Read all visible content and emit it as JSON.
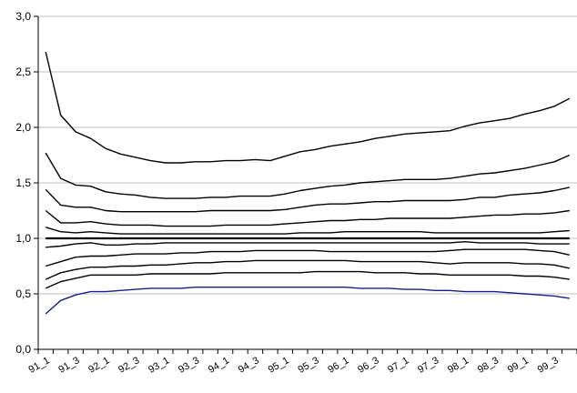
{
  "chart_data": {
    "type": "line",
    "title": "",
    "xlabel": "",
    "ylabel": "",
    "ylim": [
      0,
      3
    ],
    "grid": {
      "horizontal": true,
      "vertical": false
    },
    "legend": "none",
    "y_ticks": [
      "0,0",
      "0,5",
      "1,0",
      "1,5",
      "2,0",
      "2,5",
      "3,0"
    ],
    "x": [
      "91_1",
      "91_2",
      "91_3",
      "91_4",
      "92_1",
      "92_2",
      "92_3",
      "92_4",
      "93_1",
      "93_2",
      "93_3",
      "93_4",
      "94_1",
      "94_2",
      "94_3",
      "94_4",
      "95_1",
      "95_2",
      "95_3",
      "95_4",
      "96_1",
      "96_2",
      "96_3",
      "96_4",
      "97_1",
      "97_2",
      "97_3",
      "97_4",
      "98_1",
      "98_2",
      "98_3",
      "98_4",
      "99_1",
      "99_2",
      "99_3",
      "99_4"
    ],
    "x_tick_labels": [
      "91_1",
      "91_3",
      "92_1",
      "92_3",
      "93_1",
      "93_3",
      "94_1",
      "94_3",
      "95_1",
      "95_3",
      "96_1",
      "96_3",
      "97_1",
      "97_3",
      "98_1",
      "98_3",
      "99_1",
      "99_3"
    ],
    "series": [
      {
        "color": "#000000",
        "values": [
          2.68,
          2.11,
          1.96,
          1.9,
          1.81,
          1.76,
          1.73,
          1.7,
          1.68,
          1.68,
          1.69,
          1.69,
          1.7,
          1.7,
          1.71,
          1.7,
          1.74,
          1.78,
          1.8,
          1.83,
          1.85,
          1.87,
          1.9,
          1.92,
          1.94,
          1.95,
          1.96,
          1.97,
          2.01,
          2.04,
          2.06,
          2.08,
          2.12,
          2.15,
          2.19,
          2.26
        ]
      },
      {
        "color": "#000000",
        "values": [
          1.77,
          1.54,
          1.48,
          1.47,
          1.42,
          1.4,
          1.39,
          1.37,
          1.36,
          1.36,
          1.36,
          1.37,
          1.37,
          1.38,
          1.38,
          1.38,
          1.4,
          1.43,
          1.45,
          1.47,
          1.48,
          1.5,
          1.51,
          1.52,
          1.53,
          1.53,
          1.53,
          1.54,
          1.56,
          1.58,
          1.59,
          1.61,
          1.63,
          1.66,
          1.69,
          1.75
        ]
      },
      {
        "color": "#000000",
        "values": [
          1.44,
          1.3,
          1.28,
          1.28,
          1.25,
          1.24,
          1.24,
          1.24,
          1.24,
          1.24,
          1.24,
          1.25,
          1.25,
          1.25,
          1.25,
          1.25,
          1.26,
          1.28,
          1.3,
          1.31,
          1.31,
          1.32,
          1.33,
          1.33,
          1.34,
          1.34,
          1.34,
          1.34,
          1.35,
          1.37,
          1.37,
          1.39,
          1.4,
          1.41,
          1.43,
          1.46
        ]
      },
      {
        "color": "#000000",
        "values": [
          1.25,
          1.14,
          1.14,
          1.15,
          1.13,
          1.12,
          1.12,
          1.12,
          1.11,
          1.11,
          1.11,
          1.11,
          1.12,
          1.12,
          1.12,
          1.12,
          1.13,
          1.14,
          1.15,
          1.16,
          1.16,
          1.17,
          1.17,
          1.18,
          1.18,
          1.18,
          1.18,
          1.18,
          1.19,
          1.2,
          1.21,
          1.21,
          1.22,
          1.22,
          1.23,
          1.25
        ]
      },
      {
        "color": "#000000",
        "values": [
          1.1,
          1.06,
          1.05,
          1.06,
          1.05,
          1.04,
          1.04,
          1.04,
          1.04,
          1.04,
          1.04,
          1.04,
          1.04,
          1.04,
          1.04,
          1.04,
          1.04,
          1.05,
          1.05,
          1.05,
          1.06,
          1.06,
          1.06,
          1.06,
          1.06,
          1.06,
          1.05,
          1.05,
          1.05,
          1.05,
          1.05,
          1.05,
          1.05,
          1.05,
          1.06,
          1.07
        ]
      },
      {
        "color": "#000000",
        "width": 2.2,
        "values": [
          1,
          1,
          1,
          1,
          1,
          1,
          1,
          1,
          1,
          1,
          1,
          1,
          1,
          1,
          1,
          1,
          1,
          1,
          1,
          1,
          1,
          1,
          1,
          1,
          1,
          1,
          1,
          1,
          1,
          1,
          1,
          1,
          1,
          1,
          1,
          1
        ]
      },
      {
        "color": "#000000",
        "values": [
          0.92,
          0.93,
          0.95,
          0.96,
          0.94,
          0.94,
          0.95,
          0.95,
          0.96,
          0.96,
          0.96,
          0.96,
          0.96,
          0.96,
          0.96,
          0.96,
          0.96,
          0.96,
          0.96,
          0.96,
          0.96,
          0.96,
          0.96,
          0.96,
          0.96,
          0.96,
          0.96,
          0.96,
          0.97,
          0.96,
          0.96,
          0.96,
          0.96,
          0.95,
          0.95,
          0.95
        ]
      },
      {
        "color": "#000000",
        "values": [
          0.75,
          0.79,
          0.83,
          0.84,
          0.84,
          0.85,
          0.86,
          0.86,
          0.86,
          0.87,
          0.87,
          0.88,
          0.88,
          0.88,
          0.89,
          0.89,
          0.89,
          0.89,
          0.89,
          0.88,
          0.88,
          0.88,
          0.88,
          0.88,
          0.88,
          0.88,
          0.88,
          0.89,
          0.9,
          0.9,
          0.9,
          0.9,
          0.9,
          0.89,
          0.88,
          0.85
        ]
      },
      {
        "color": "#000000",
        "values": [
          0.63,
          0.69,
          0.72,
          0.74,
          0.74,
          0.75,
          0.75,
          0.76,
          0.76,
          0.77,
          0.78,
          0.78,
          0.79,
          0.79,
          0.8,
          0.8,
          0.8,
          0.8,
          0.8,
          0.8,
          0.8,
          0.79,
          0.79,
          0.79,
          0.79,
          0.79,
          0.78,
          0.77,
          0.78,
          0.78,
          0.78,
          0.78,
          0.77,
          0.77,
          0.76,
          0.73
        ]
      },
      {
        "color": "#000000",
        "values": [
          0.55,
          0.61,
          0.64,
          0.67,
          0.67,
          0.67,
          0.67,
          0.68,
          0.68,
          0.68,
          0.68,
          0.68,
          0.69,
          0.69,
          0.69,
          0.69,
          0.69,
          0.69,
          0.7,
          0.7,
          0.7,
          0.7,
          0.69,
          0.69,
          0.69,
          0.68,
          0.68,
          0.67,
          0.67,
          0.67,
          0.67,
          0.67,
          0.66,
          0.66,
          0.65,
          0.63
        ]
      },
      {
        "color": "#1c1c8c",
        "values": [
          0.32,
          0.44,
          0.49,
          0.52,
          0.52,
          0.53,
          0.54,
          0.55,
          0.55,
          0.55,
          0.56,
          0.56,
          0.56,
          0.56,
          0.56,
          0.56,
          0.56,
          0.56,
          0.56,
          0.56,
          0.56,
          0.55,
          0.55,
          0.55,
          0.54,
          0.54,
          0.53,
          0.53,
          0.52,
          0.52,
          0.52,
          0.51,
          0.5,
          0.49,
          0.48,
          0.46
        ]
      }
    ]
  }
}
